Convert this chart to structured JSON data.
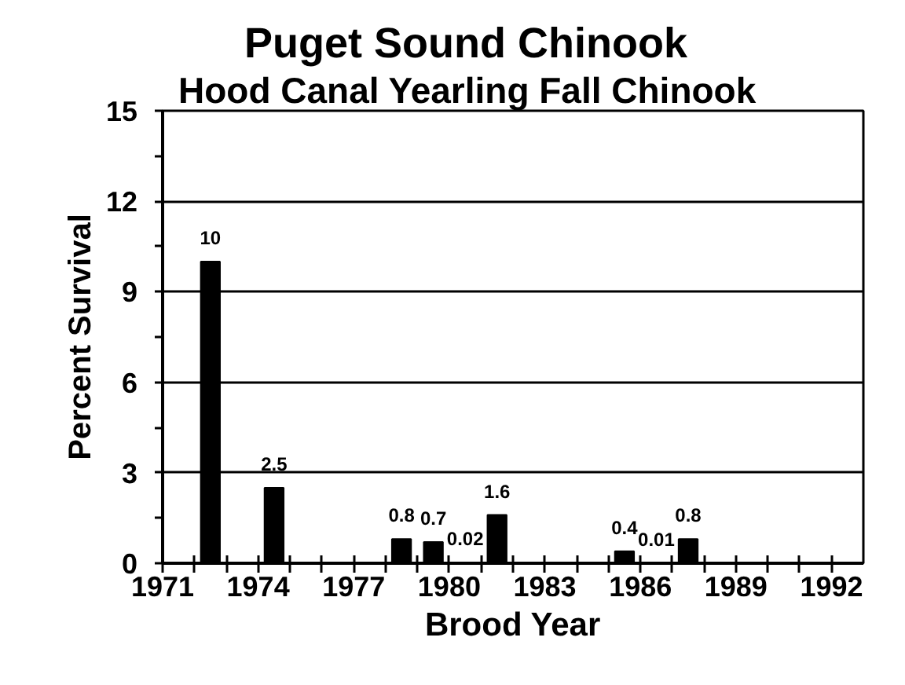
{
  "chart_data": {
    "type": "bar",
    "title": "Puget Sound Chinook",
    "subtitle": "Hood Canal Yearling Fall Chinook",
    "xlabel": "Brood Year",
    "ylabel": "Percent Survival",
    "x": [
      1972.5,
      1974.5,
      1978.5,
      1979.5,
      1980.5,
      1981.5,
      1985.5,
      1986.5,
      1987.5
    ],
    "values": [
      10,
      2.5,
      0.8,
      0.7,
      0.02,
      1.6,
      0.4,
      0.01,
      0.8
    ],
    "color": "#000000",
    "xlim": [
      1971,
      1993
    ],
    "xticks": [
      1971,
      {
        "value": 1972,
        "label": null
      },
      {
        "value": 1973,
        "label": null
      },
      1974,
      {
        "value": 1975,
        "label": null
      },
      {
        "value": 1976,
        "label": null
      },
      1977,
      {
        "value": 1978,
        "label": null
      },
      {
        "value": 1979,
        "label": null
      },
      1980,
      {
        "value": 1981,
        "label": null
      },
      {
        "value": 1982,
        "label": null
      },
      1983,
      {
        "value": 1984,
        "label": null
      },
      {
        "value": 1985,
        "label": null
      },
      1986,
      {
        "value": 1987,
        "label": null
      },
      {
        "value": 1988,
        "label": null
      },
      1989,
      {
        "value": 1990,
        "label": null
      },
      {
        "value": 1991,
        "label": null
      },
      1992
    ],
    "ylim": [
      0,
      15
    ],
    "yticks": [
      0,
      {
        "value": 1.5,
        "label": null
      },
      3,
      {
        "value": 4.5,
        "label": null
      },
      6,
      {
        "value": 7.5,
        "label": null
      },
      9,
      {
        "value": 10.5,
        "label": null
      },
      12,
      {
        "value": 13.5,
        "label": null
      },
      15
    ],
    "grid": "y",
    "data_labels": true
  }
}
